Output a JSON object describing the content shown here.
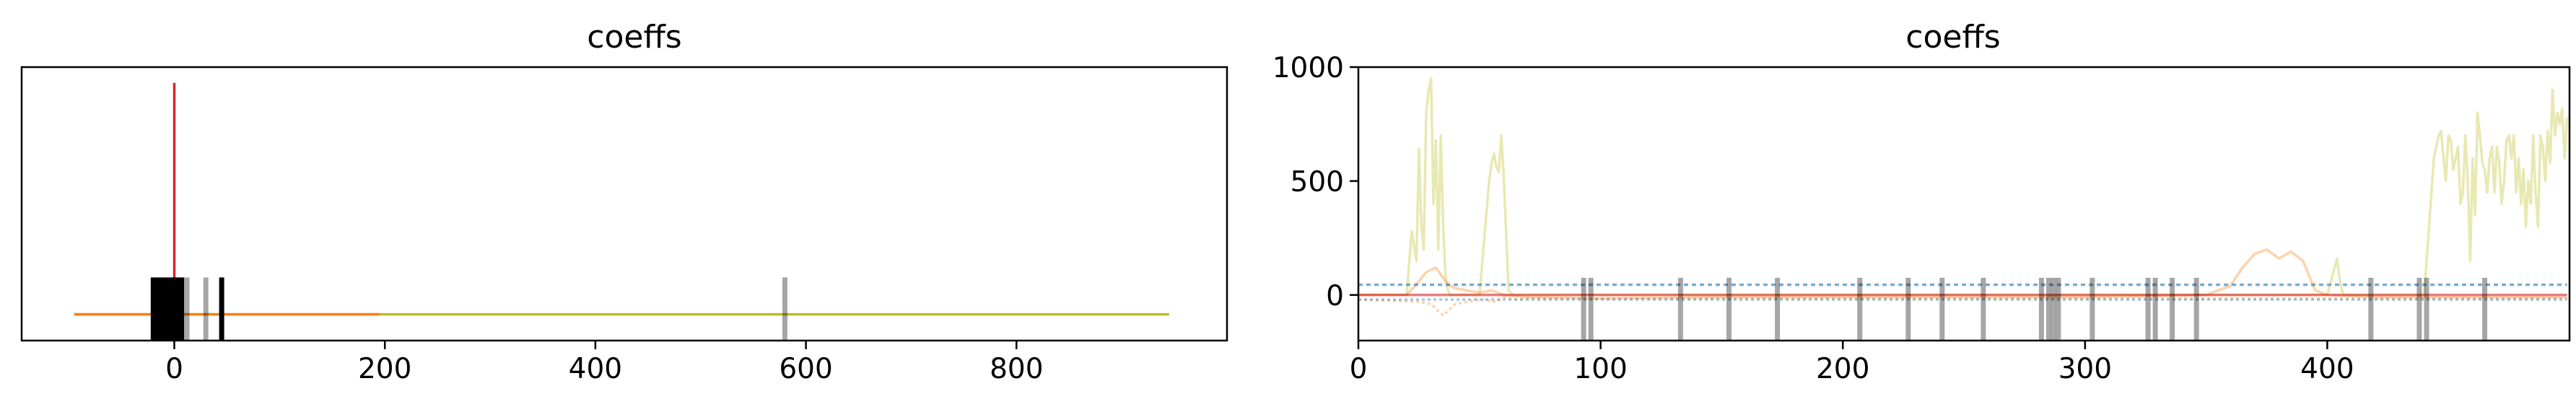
{
  "chart_data": [
    {
      "type": "line",
      "title": "coeffs",
      "xlabel": "",
      "ylabel": "",
      "xlim": [
        -145,
        1000
      ],
      "ylim": [
        -25,
        235
      ],
      "xticks": [
        0,
        200,
        400,
        600,
        800
      ],
      "xtick_labels": [
        "0",
        "200",
        "400",
        "600",
        "800"
      ],
      "yticks": [],
      "grid": false,
      "legend": "none",
      "series": [
        {
          "color": "#bcbd22",
          "x": [
            -95,
            945
          ],
          "y": [
            0,
            0
          ]
        },
        {
          "color": "#ff7f0e",
          "x": [
            -95,
            195
          ],
          "y": [
            0,
            0
          ]
        },
        {
          "color": "#d62728",
          "x": [
            0,
            0
          ],
          "y": [
            0,
            220
          ]
        }
      ],
      "vlines": [
        {
          "x": -20,
          "color": "#000000",
          "alpha": 1.0
        },
        {
          "x": -17,
          "color": "#000000",
          "alpha": 1.0
        },
        {
          "x": -14,
          "color": "#000000",
          "alpha": 1.0
        },
        {
          "x": -11,
          "color": "#000000",
          "alpha": 1.0
        },
        {
          "x": -8,
          "color": "#000000",
          "alpha": 1.0
        },
        {
          "x": -5,
          "color": "#000000",
          "alpha": 1.0
        },
        {
          "x": -2,
          "color": "#000000",
          "alpha": 1.0
        },
        {
          "x": 1,
          "color": "#000000",
          "alpha": 1.0
        },
        {
          "x": 4,
          "color": "#000000",
          "alpha": 1.0
        },
        {
          "x": 7,
          "color": "#000000",
          "alpha": 1.0
        },
        {
          "x": 12,
          "color": "#000000",
          "alpha": 0.35
        },
        {
          "x": 30,
          "color": "#000000",
          "alpha": 0.35
        },
        {
          "x": 45,
          "color": "#000000",
          "alpha": 1.0
        },
        {
          "x": 580,
          "color": "#000000",
          "alpha": 0.35
        }
      ]
    },
    {
      "type": "line",
      "title": "coeffs",
      "xlabel": "",
      "ylabel": "",
      "xlim": [
        0,
        500
      ],
      "ylim": [
        -200,
        1000
      ],
      "xticks": [
        0,
        100,
        200,
        300,
        400
      ],
      "xtick_labels": [
        "0",
        "100",
        "200",
        "300",
        "400"
      ],
      "yticks": [
        0,
        500,
        1000
      ],
      "ytick_labels": [
        "0",
        "500",
        "1000"
      ],
      "grid": false,
      "legend": "none",
      "series": [
        {
          "color": "#bcbd22",
          "alpha": 0.35,
          "x": [
            0,
            20,
            22,
            24,
            25,
            26,
            27,
            28,
            29,
            30,
            31,
            32,
            33,
            34,
            35,
            36,
            37,
            38,
            40,
            45,
            50,
            52,
            54,
            55,
            56,
            57,
            58,
            59,
            60,
            62,
            64,
            70,
            80,
            100,
            200,
            300,
            400,
            404,
            405,
            406,
            407,
            410,
            420,
            430,
            440,
            441,
            442,
            443,
            444,
            445,
            446,
            447,
            448,
            449,
            450,
            451,
            452,
            453,
            454,
            455,
            456,
            457,
            458,
            459,
            460,
            461,
            462,
            463,
            464,
            465,
            466,
            467,
            468,
            469,
            470,
            471,
            472,
            473,
            474,
            475,
            476,
            477,
            478,
            479,
            480,
            481,
            482,
            483,
            484,
            485,
            486,
            487,
            488,
            489,
            490,
            491,
            492,
            493,
            494,
            495,
            496,
            497,
            498,
            499
          ],
          "y": [
            0,
            0,
            280,
            150,
            640,
            300,
            200,
            800,
            900,
            950,
            400,
            680,
            200,
            700,
            300,
            80,
            20,
            0,
            0,
            0,
            0,
            250,
            500,
            580,
            620,
            560,
            540,
            700,
            520,
            20,
            0,
            0,
            0,
            0,
            0,
            0,
            0,
            160,
            80,
            20,
            0,
            0,
            0,
            0,
            0,
            150,
            300,
            450,
            600,
            650,
            700,
            720,
            600,
            500,
            700,
            680,
            550,
            600,
            650,
            400,
            450,
            700,
            500,
            150,
            600,
            350,
            800,
            700,
            580,
            550,
            450,
            600,
            650,
            450,
            650,
            580,
            400,
            500,
            680,
            700,
            600,
            700,
            450,
            600,
            400,
            550,
            300,
            500,
            400,
            700,
            450,
            300,
            700,
            650,
            500,
            720,
            580,
            900,
            700,
            800,
            750,
            820,
            600,
            780
          ]
        },
        {
          "color": "#ff7f0e",
          "alpha": 0.35,
          "x": [
            0,
            20,
            25,
            28,
            30,
            32,
            34,
            36,
            38,
            40,
            45,
            50,
            55,
            60,
            70,
            100,
            150,
            200,
            250,
            300,
            350,
            360,
            365,
            370,
            375,
            380,
            385,
            390,
            395,
            400,
            420,
            450,
            499
          ],
          "y": [
            0,
            0,
            60,
            100,
            110,
            120,
            90,
            60,
            40,
            30,
            20,
            10,
            20,
            0,
            -10,
            -15,
            -10,
            -10,
            -10,
            -10,
            0,
            40,
            120,
            180,
            200,
            160,
            190,
            150,
            20,
            0,
            -10,
            -10,
            -10
          ]
        },
        {
          "color": "#ff7f0e",
          "alpha": 0.35,
          "dash": "4,4",
          "x": [
            0,
            25,
            30,
            32,
            35,
            40,
            50,
            57,
            60,
            65,
            70,
            100,
            200,
            300,
            499
          ],
          "y": [
            -20,
            -30,
            -40,
            -60,
            -90,
            -40,
            -20,
            -30,
            -10,
            -20,
            -15,
            -15,
            -15,
            -15,
            -15
          ]
        },
        {
          "color": "#1f77b4",
          "alpha": 0.6,
          "dash": "6,5",
          "x": [
            0,
            499
          ],
          "y": [
            45,
            45
          ]
        },
        {
          "color": "#1f77b4",
          "alpha": 0.4,
          "dash": "4,4",
          "x": [
            0,
            499
          ],
          "y": [
            -20,
            -20
          ]
        },
        {
          "color": "#d62728",
          "alpha": 0.6,
          "x": [
            0,
            499
          ],
          "y": [
            0,
            0
          ]
        }
      ],
      "vlines": [
        {
          "x": 93,
          "color": "#000000",
          "alpha": 0.35
        },
        {
          "x": 96,
          "color": "#000000",
          "alpha": 0.35
        },
        {
          "x": 133,
          "color": "#000000",
          "alpha": 0.35
        },
        {
          "x": 153,
          "color": "#000000",
          "alpha": 0.35
        },
        {
          "x": 173,
          "color": "#000000",
          "alpha": 0.35
        },
        {
          "x": 207,
          "color": "#000000",
          "alpha": 0.35
        },
        {
          "x": 227,
          "color": "#000000",
          "alpha": 0.35
        },
        {
          "x": 241,
          "color": "#000000",
          "alpha": 0.35
        },
        {
          "x": 258,
          "color": "#000000",
          "alpha": 0.35
        },
        {
          "x": 282,
          "color": "#000000",
          "alpha": 0.35
        },
        {
          "x": 285,
          "color": "#000000",
          "alpha": 0.35
        },
        {
          "x": 287,
          "color": "#000000",
          "alpha": 0.35
        },
        {
          "x": 289,
          "color": "#000000",
          "alpha": 0.35
        },
        {
          "x": 303,
          "color": "#000000",
          "alpha": 0.35
        },
        {
          "x": 326,
          "color": "#000000",
          "alpha": 0.35
        },
        {
          "x": 329,
          "color": "#000000",
          "alpha": 0.35
        },
        {
          "x": 336,
          "color": "#000000",
          "alpha": 0.35
        },
        {
          "x": 346,
          "color": "#000000",
          "alpha": 0.35
        },
        {
          "x": 418,
          "color": "#000000",
          "alpha": 0.35
        },
        {
          "x": 438,
          "color": "#000000",
          "alpha": 0.35
        },
        {
          "x": 441,
          "color": "#000000",
          "alpha": 0.35
        },
        {
          "x": 465,
          "color": "#000000",
          "alpha": 0.35
        }
      ]
    }
  ]
}
